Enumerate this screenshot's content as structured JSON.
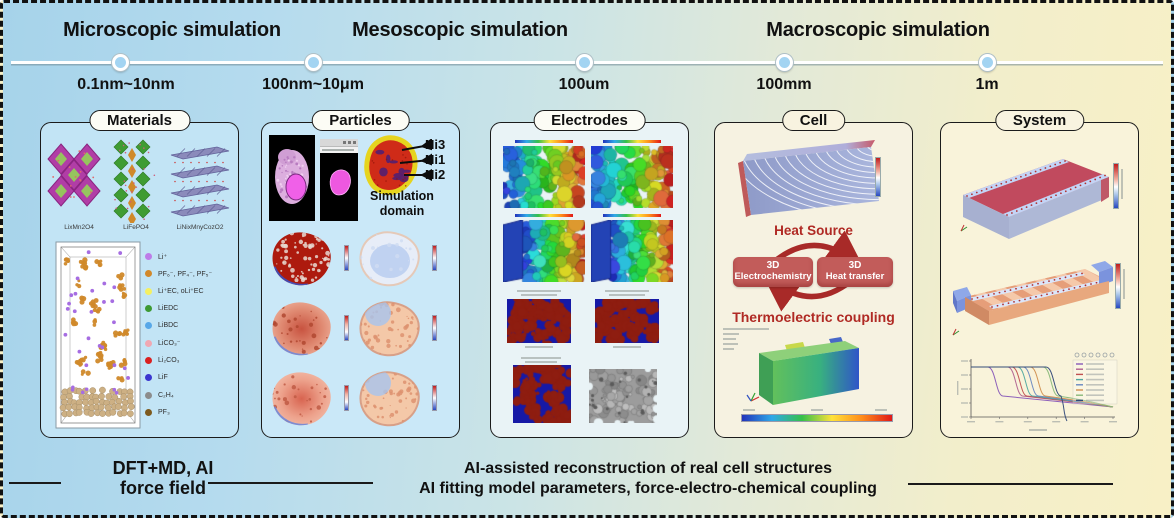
{
  "header": {
    "sections": [
      {
        "label": "Microscopic simulation"
      },
      {
        "label": "Mesoscopic simulation"
      },
      {
        "label": "Macroscopic simulation"
      }
    ],
    "scales": [
      "0.1nm~10nm",
      "100nm~10μm",
      "100um",
      "100mm",
      "1m"
    ]
  },
  "panels": {
    "materials": {
      "label": "Materials",
      "formulas": [
        "LixMn2O4",
        "LiFePO4",
        "LiNixMnyCozO2"
      ],
      "legend": [
        {
          "label": "Li⁺",
          "color": "#bd7ce8"
        },
        {
          "label": "PF₆⁻, PF₄⁻, PF₅⁻",
          "color": "#d2882a"
        },
        {
          "label": "Li⁺EC, oLi⁺EC",
          "color": "#f4f062"
        },
        {
          "label": "LiEDC",
          "color": "#3d9a33"
        },
        {
          "label": "LiBDC",
          "color": "#58a8e8"
        },
        {
          "label": "LiCO₃⁻",
          "color": "#f0a8b2"
        },
        {
          "label": "Li₂CO₃",
          "color": "#da2020"
        },
        {
          "label": "LiF",
          "color": "#3a35cf"
        },
        {
          "label": "C₂H₄",
          "color": "#8c8c8c"
        },
        {
          "label": "PF₃",
          "color": "#7d5a1e"
        }
      ]
    },
    "particles": {
      "label": "Particles",
      "annotations": [
        "Ni3",
        "Ni1",
        "Ni2"
      ],
      "caption": "Simulation domain"
    },
    "electrodes": {
      "label": "Electrodes"
    },
    "cell": {
      "label": "Cell",
      "heat_source": "Heat Source",
      "box_left": [
        "3D",
        "Electrochemistry"
      ],
      "box_right": [
        "3D",
        "Heat transfer"
      ],
      "coupling": "Thermoelectric coupling"
    },
    "system": {
      "label": "System",
      "chart": {
        "type": "line",
        "curves": [
          {
            "color": "#8858b8",
            "drop": 0.16
          },
          {
            "color": "#b06090",
            "drop": 0.3
          },
          {
            "color": "#c05050",
            "drop": 0.33
          },
          {
            "color": "#50a8a0",
            "drop": 0.37
          },
          {
            "color": "#6888c0",
            "drop": 0.41
          },
          {
            "color": "#d09050",
            "drop": 0.46
          },
          {
            "color": "#88b878",
            "drop": 0.55
          },
          {
            "color": "#304878",
            "drop": 0.57,
            "plunge": true
          }
        ]
      }
    }
  },
  "footer": {
    "left_line1": "DFT+MD, AI",
    "left_line2": "force field",
    "center_line1": "AI-assisted reconstruction of real cell structures",
    "center_line2": "AI fitting model parameters, force-electro-chemical coupling"
  },
  "colors": {
    "accent_red": "#b02a24",
    "box_red": "#c25c5a",
    "timeline_dot": "#a3d4f2"
  }
}
